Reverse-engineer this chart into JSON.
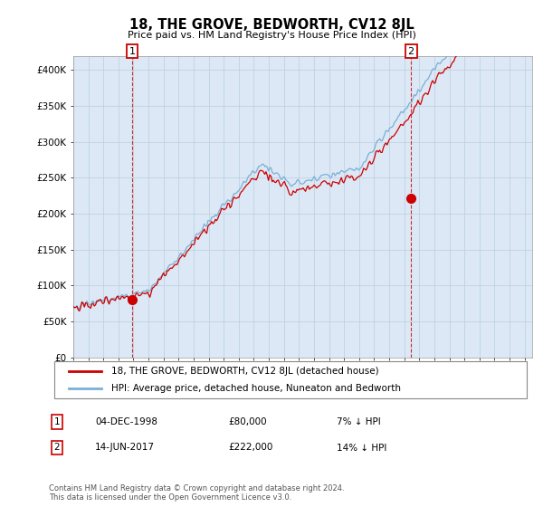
{
  "title": "18, THE GROVE, BEDWORTH, CV12 8JL",
  "subtitle": "Price paid vs. HM Land Registry's House Price Index (HPI)",
  "ylabel_ticks": [
    "£0",
    "£50K",
    "£100K",
    "£150K",
    "£200K",
    "£250K",
    "£300K",
    "£350K",
    "£400K"
  ],
  "ytick_values": [
    0,
    50000,
    100000,
    150000,
    200000,
    250000,
    300000,
    350000,
    400000
  ],
  "ylim": [
    0,
    420000
  ],
  "xlim_start": 1995.0,
  "xlim_end": 2025.5,
  "sale1": {
    "date_num": 1998.92,
    "price": 80000,
    "label": "1",
    "date_str": "04-DEC-1998"
  },
  "sale2": {
    "date_num": 2017.45,
    "price": 222000,
    "label": "2",
    "date_str": "14-JUN-2017"
  },
  "legend_line1": "18, THE GROVE, BEDWORTH, CV12 8JL (detached house)",
  "legend_line2": "HPI: Average price, detached house, Nuneaton and Bedworth",
  "annotation1_date": "04-DEC-1998",
  "annotation1_price": "£80,000",
  "annotation1_pct": "7% ↓ HPI",
  "annotation2_date": "14-JUN-2017",
  "annotation2_price": "£222,000",
  "annotation2_pct": "14% ↓ HPI",
  "footer": "Contains HM Land Registry data © Crown copyright and database right 2024.\nThis data is licensed under the Open Government Licence v3.0.",
  "line_red": "#cc0000",
  "line_blue": "#7ab0d4",
  "chart_bg": "#dce8f5",
  "grid_color": "#b8cfe0",
  "box_color": "#cc0000",
  "box_border": "#cc0000"
}
